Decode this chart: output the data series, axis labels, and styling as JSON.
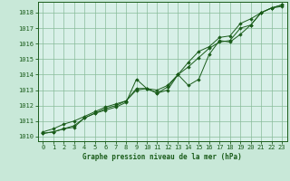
{
  "fig_bg_color": "#c8e8d8",
  "plot_bg_color": "#d8f0e8",
  "grid_color": "#88bb99",
  "line_color": "#1a5c1a",
  "marker_color": "#1a5c1a",
  "xlabel": "Graphe pression niveau de la mer (hPa)",
  "xlim": [
    -0.5,
    23.5
  ],
  "ylim": [
    1009.7,
    1018.7
  ],
  "yticks": [
    1010,
    1011,
    1012,
    1013,
    1014,
    1015,
    1016,
    1017,
    1018
  ],
  "xticks": [
    0,
    1,
    2,
    3,
    4,
    5,
    6,
    7,
    8,
    9,
    10,
    11,
    12,
    13,
    14,
    15,
    16,
    17,
    18,
    19,
    20,
    21,
    22,
    23
  ],
  "series": [
    [
      1010.2,
      1010.3,
      1010.5,
      1010.6,
      1011.2,
      1011.5,
      1011.7,
      1011.9,
      1012.2,
      1013.7,
      1013.1,
      1012.8,
      1013.0,
      1014.0,
      1013.3,
      1013.7,
      1015.3,
      1016.2,
      1016.1,
      1016.6,
      1017.2,
      1018.0,
      1018.3,
      1018.4
    ],
    [
      1010.2,
      1010.3,
      1010.5,
      1010.7,
      1011.2,
      1011.5,
      1011.8,
      1012.0,
      1012.3,
      1013.1,
      1013.1,
      1012.8,
      1013.2,
      1014.0,
      1014.8,
      1015.5,
      1015.8,
      1016.4,
      1016.5,
      1017.3,
      1017.6,
      1018.0,
      1018.3,
      1018.5
    ],
    [
      1010.3,
      1010.5,
      1010.8,
      1011.0,
      1011.3,
      1011.6,
      1011.9,
      1012.1,
      1012.3,
      1013.0,
      1013.1,
      1013.0,
      1013.3,
      1014.0,
      1014.5,
      1015.1,
      1015.7,
      1016.1,
      1016.2,
      1017.0,
      1017.2,
      1018.0,
      1018.3,
      1018.5
    ]
  ]
}
